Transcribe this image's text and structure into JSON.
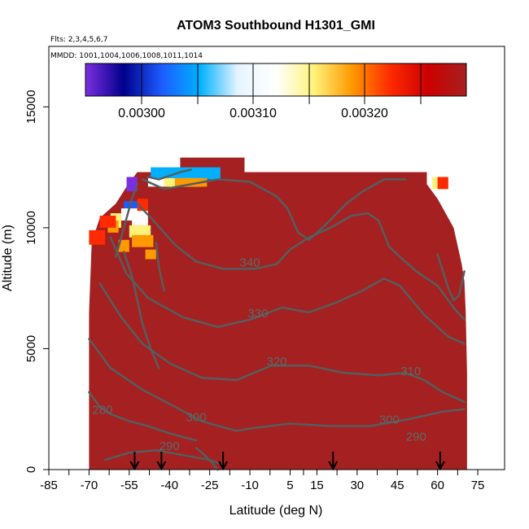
{
  "title": "ATOM3 Southbound H1301_GMI",
  "flights_label": "Flts: 2,3,4,5,6,7",
  "dates_label": "MMDD: 1001,1004,1006,1008,1011,1014",
  "colors": {
    "background_field": "#a52020",
    "contour_line": "#555e5e",
    "contour_label": "#5b6a6a",
    "arrow": "#000000",
    "colorbar_stops": [
      "#7b2fe0",
      "#00008b",
      "#1e5bff",
      "#00b0ff",
      "#e6f4ff",
      "#ffffff",
      "#fff27a",
      "#ff9900",
      "#ff2a00",
      "#cc0000",
      "#a52020"
    ]
  },
  "chart_data": {
    "type": "heatmap",
    "title": "ATOM3 Southbound H1301_GMI",
    "xlabel": "Latitude (deg N)",
    "ylabel": "Altitude (m)",
    "xlim": [
      -85,
      85
    ],
    "ylim": [
      0,
      17500
    ],
    "x_ticks": [
      -85,
      -70,
      -55,
      -40,
      -25,
      -10,
      5,
      15,
      30,
      45,
      60,
      75
    ],
    "y_ticks": [
      0,
      5000,
      10000,
      15000
    ],
    "grid": false,
    "colorbar": {
      "position": "top, inside plot",
      "tick_labels": [
        "0.00300",
        "0.00310",
        "0.00320"
      ],
      "range": [
        0.00295,
        0.0033
      ]
    },
    "data_extent": {
      "lat_range": [
        -70,
        71
      ],
      "typical_value": 0.00329,
      "low_value_region": {
        "lat": [
          -60,
          -42
        ],
        "alt": [
          9000,
          12500
        ],
        "min_value": 0.00296
      }
    },
    "contour_labels": [
      {
        "text": "280",
        "lat": -65,
        "alt": 2300
      },
      {
        "text": "290",
        "lat": -40,
        "alt": 800
      },
      {
        "text": "300",
        "lat": -30,
        "alt": 2000
      },
      {
        "text": "320",
        "lat": 0,
        "alt": 4300
      },
      {
        "text": "330",
        "lat": -7,
        "alt": 6300
      },
      {
        "text": "340",
        "lat": -10,
        "alt": 8400
      },
      {
        "text": "310",
        "lat": 50,
        "alt": 3900
      },
      {
        "text": "300",
        "lat": 42,
        "alt": 1900
      },
      {
        "text": "290",
        "lat": 52,
        "alt": 1200
      }
    ],
    "arrows_lat": [
      -53,
      -43,
      -20,
      21,
      61
    ]
  }
}
